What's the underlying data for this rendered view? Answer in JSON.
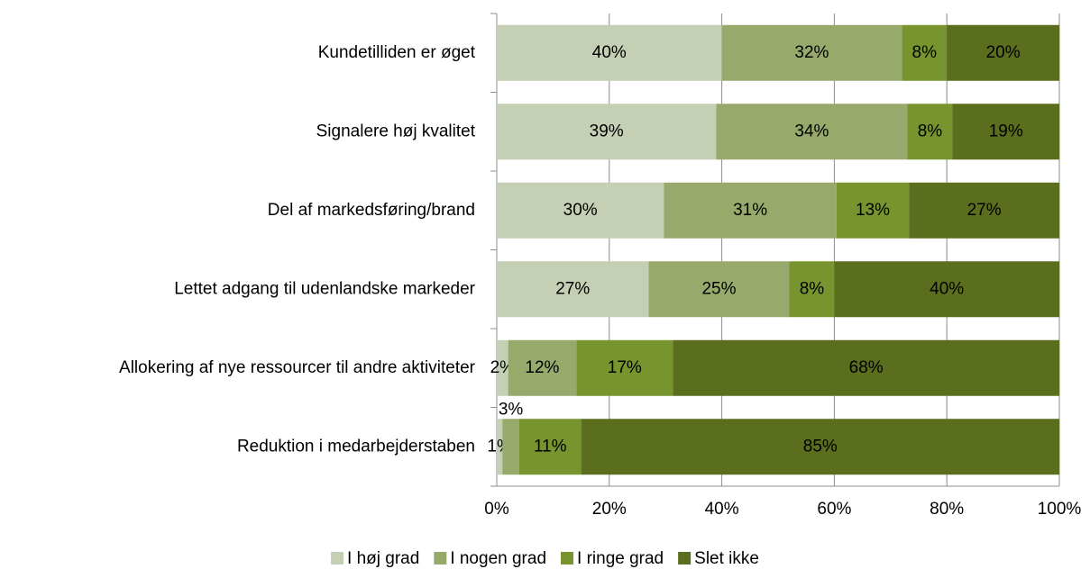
{
  "chart_data": {
    "type": "stacked_bar_100",
    "categories": [
      "Kundetilliden er øget",
      "Signalere høj kvalitet",
      "Del af markedsføring/brand",
      "Lettet adgang til udenlandske markeder",
      "Allokering af nye ressourcer til andre aktiviteter",
      "Reduktion i medarbejderstaben"
    ],
    "series": [
      {
        "name": "I høj grad",
        "color": "#c4cfb4",
        "values": [
          40,
          39,
          30,
          27,
          2,
          1
        ],
        "value_labels": [
          "40%",
          "39%",
          "30%",
          "27%",
          "2%",
          "1%"
        ]
      },
      {
        "name": "I nogen grad",
        "color": "#98a96c",
        "values": [
          32,
          34,
          31,
          25,
          12,
          3
        ],
        "value_labels": [
          "32%",
          "34%",
          "31%",
          "25%",
          "12%",
          "3%"
        ]
      },
      {
        "name": "I ringe grad",
        "color": "#77942e",
        "values": [
          8,
          8,
          13,
          8,
          17,
          11
        ],
        "value_labels": [
          "8%",
          "8%",
          "13%",
          "8%",
          "17%",
          "11%"
        ]
      },
      {
        "name": "Slet ikke",
        "color": "#5a6e1e",
        "values": [
          20,
          19,
          27,
          40,
          68,
          85
        ],
        "value_labels": [
          "20%",
          "19%",
          "27%",
          "40%",
          "68%",
          "85%"
        ]
      }
    ],
    "xlim": [
      0,
      100
    ],
    "xticks": [
      {
        "value": 0,
        "label": "0%"
      },
      {
        "value": 20,
        "label": "20%"
      },
      {
        "value": 40,
        "label": "40%"
      },
      {
        "value": 60,
        "label": "60%"
      },
      {
        "value": 80,
        "label": "80%"
      },
      {
        "value": 100,
        "label": "100%"
      }
    ],
    "grid": true,
    "legend": "bottom"
  }
}
